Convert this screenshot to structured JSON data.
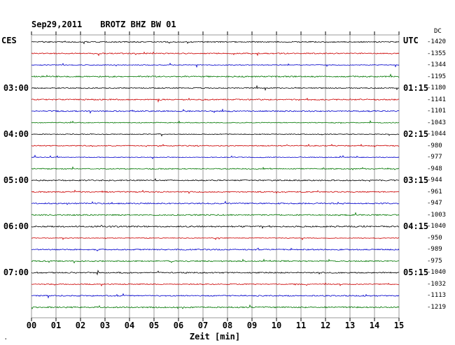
{
  "header": {
    "date": "Sep29,2011",
    "station": "BROTZ BHZ BW 01"
  },
  "left_axis": {
    "timezone_label": "CES",
    "labels": [
      {
        "row": 4,
        "text": "03:00"
      },
      {
        "row": 8,
        "text": "04:00"
      },
      {
        "row": 12,
        "text": "05:00"
      },
      {
        "row": 16,
        "text": "06:00"
      },
      {
        "row": 20,
        "text": "07:00"
      }
    ]
  },
  "right_axis": {
    "timezone_label": "UTC",
    "labels": [
      {
        "row": 4,
        "text": "01:15"
      },
      {
        "row": 8,
        "text": "02:15"
      },
      {
        "row": 12,
        "text": "03:15"
      },
      {
        "row": 16,
        "text": "04:15"
      },
      {
        "row": 20,
        "text": "05:15"
      }
    ]
  },
  "dc_column": {
    "label": "DC"
  },
  "footer": {
    "corner_mark": "·"
  },
  "chart_data": {
    "type": "line",
    "title": "Sep29,2011 BROTZ BHZ BW 01",
    "xlabel": "Zeit [min]",
    "x_range_minutes": [
      0,
      15
    ],
    "x_ticks": [
      "00",
      "01",
      "02",
      "03",
      "04",
      "05",
      "06",
      "07",
      "08",
      "09",
      "10",
      "11",
      "12",
      "13",
      "14",
      "15"
    ],
    "num_traces": 24,
    "minutes_per_trace": 15,
    "trace_color_cycle": [
      "#000000",
      "#cc0000",
      "#0000cc",
      "#007700"
    ],
    "grid_color": "#999999",
    "dc_values": [
      -1420,
      -1355,
      -1344,
      -1195,
      -1180,
      -1141,
      -1101,
      -1043,
      -1044,
      -980,
      -977,
      -948,
      -944,
      -961,
      -947,
      -1003,
      -1040,
      -950,
      -989,
      -975,
      -1040,
      -1032,
      -1113,
      -1219
    ],
    "traces_description": "24 near-flat low-amplitude seismic noise traces of 15 minutes each, color cycling black/red/blue/green, hour rows (every 4th trace) in black",
    "grid": "vertical gridlines at each minute, tick marks outside top and bottom borders",
    "legend": "none"
  }
}
